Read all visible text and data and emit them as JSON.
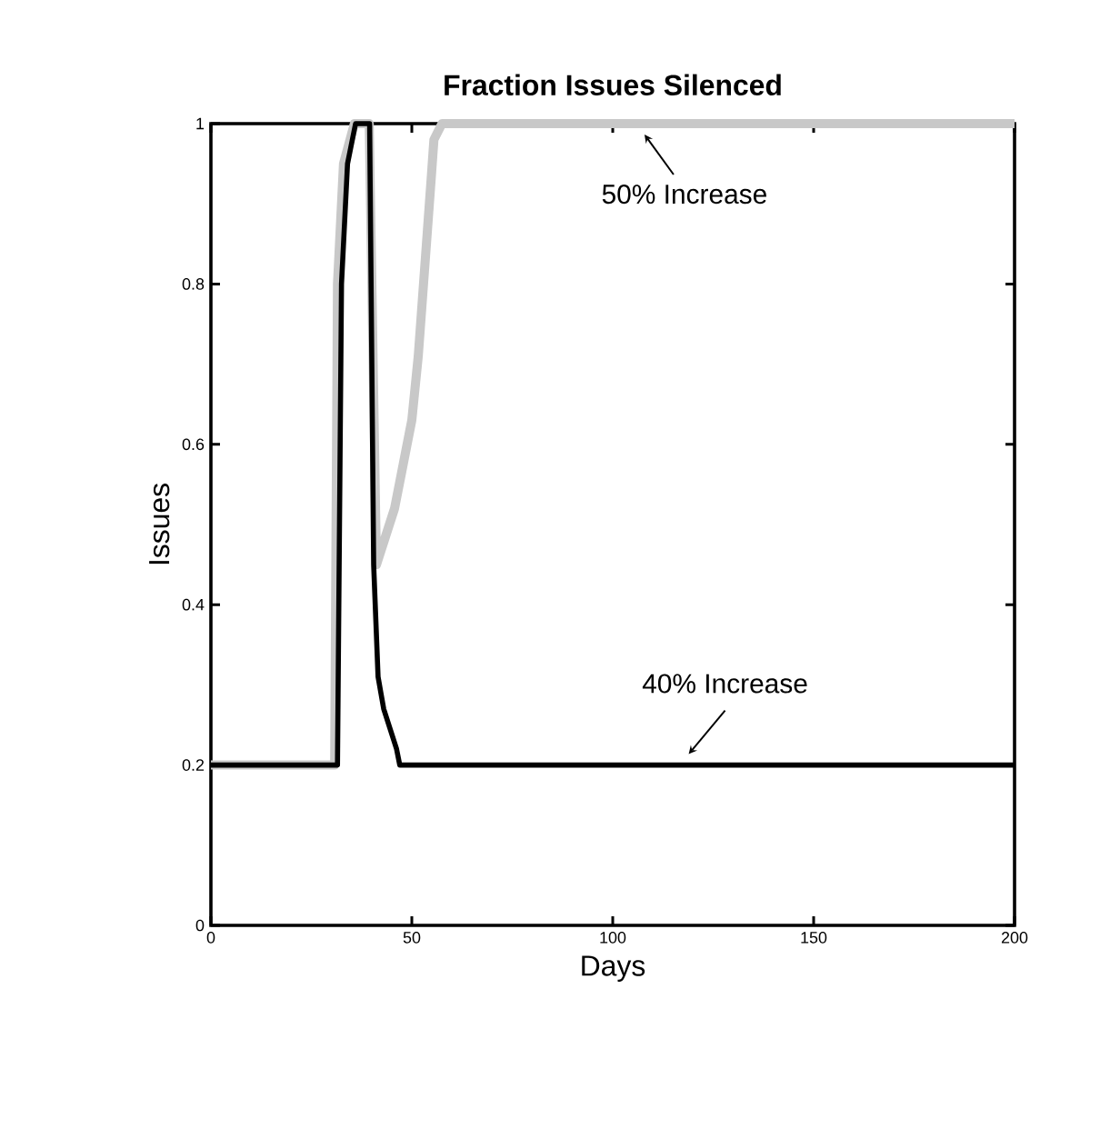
{
  "chart_data": {
    "type": "line",
    "title": "Fraction Issues Silenced",
    "xlabel": "Days",
    "ylabel": "Issues",
    "xlim": [
      0,
      200
    ],
    "ylim": [
      0,
      1
    ],
    "xticks": [
      0,
      50,
      100,
      150,
      200
    ],
    "yticks": [
      0,
      0.2,
      0.4,
      0.6,
      0.8,
      1
    ],
    "grid": false,
    "marker": "none",
    "line_style": "solid",
    "series": [
      {
        "color": "#000000",
        "x": [
          0,
          31.5,
          32.5,
          34,
          36,
          39.5,
          40.5,
          41.6,
          43,
          46.2,
          47,
          200
        ],
        "values": [
          0.2,
          0.2,
          0.8,
          0.95,
          1,
          1,
          0.45,
          0.31,
          0.27,
          0.22,
          0.2,
          0.2
        ]
      },
      {
        "color": "#c8c8c8",
        "x": [
          0,
          30.8,
          31.5,
          33,
          35.7,
          39.4,
          41.2,
          45.7,
          50,
          51.6,
          54.8,
          55.5,
          57.5,
          200
        ],
        "values": [
          0.2,
          0.2,
          0.8,
          0.95,
          1,
          1,
          0.45,
          0.52,
          0.63,
          0.71,
          0.93,
          0.98,
          1,
          1
        ]
      }
    ],
    "annotations": [
      {
        "text": "50% Increase",
        "x": 107,
        "y": 1
      },
      {
        "text": "40% Increase",
        "x": 118,
        "y": 0.2
      }
    ]
  }
}
